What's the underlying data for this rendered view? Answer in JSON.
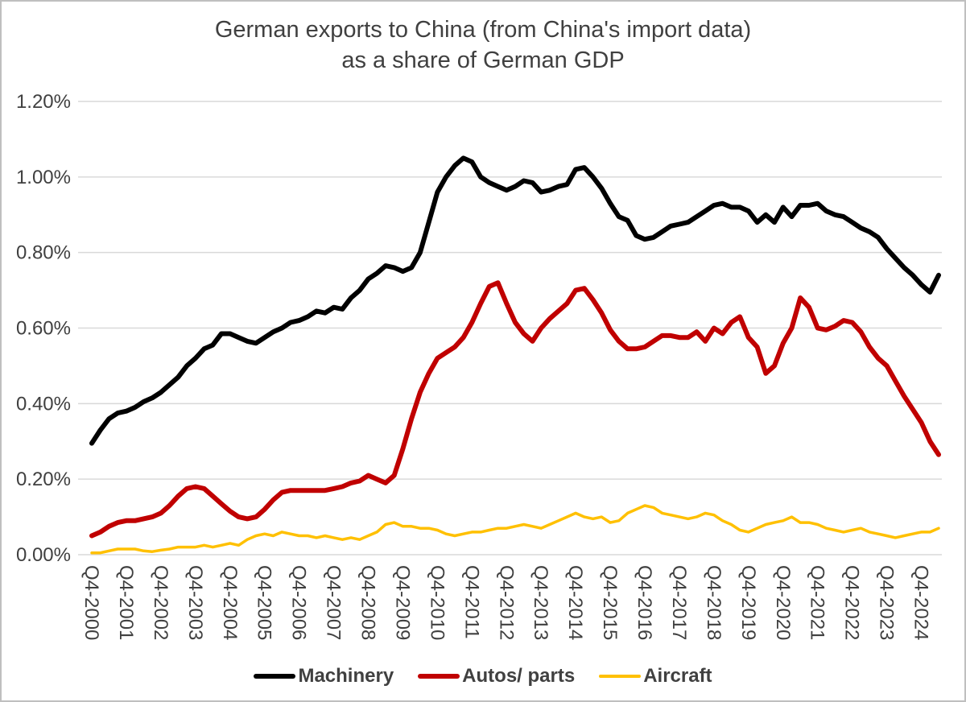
{
  "chart_data": {
    "type": "line",
    "title": "German exports to China (from China's import data) as a share of German GDP",
    "title_lines": [
      "German exports to China (from China's import data)",
      "as a share of German GDP"
    ],
    "x_unit": "quarter",
    "x_start": "Q4-2000",
    "x_tick_every": 4,
    "x_tick_labels": [
      "Q4-2000",
      "Q4-2001",
      "Q4-2002",
      "Q4-2003",
      "Q4-2004",
      "Q4-2005",
      "Q4-2006",
      "Q4-2007",
      "Q4-2008",
      "Q4-2009",
      "Q4-2010",
      "Q4-2011",
      "Q4-2012",
      "Q4-2013",
      "Q4-2014",
      "Q4-2015",
      "Q4-2016",
      "Q4-2017",
      "Q4-2018",
      "Q4-2019",
      "Q4-2020",
      "Q4-2021",
      "Q4-2022",
      "Q4-2023",
      "Q4-2024"
    ],
    "ylim": [
      0,
      1.2
    ],
    "ytick_step": 0.2,
    "ytick_labels": [
      "0.00%",
      "0.20%",
      "0.40%",
      "0.60%",
      "0.80%",
      "1.00%",
      "1.20%"
    ],
    "y_unit": "percent of German GDP",
    "grid": "horizontal",
    "legend_position": "bottom",
    "series": [
      {
        "name": "Machinery",
        "color": "#000000",
        "values": [
          0.295,
          0.33,
          0.36,
          0.375,
          0.38,
          0.39,
          0.405,
          0.415,
          0.43,
          0.45,
          0.47,
          0.5,
          0.52,
          0.545,
          0.555,
          0.585,
          0.585,
          0.575,
          0.565,
          0.56,
          0.575,
          0.59,
          0.6,
          0.615,
          0.62,
          0.63,
          0.645,
          0.64,
          0.655,
          0.65,
          0.68,
          0.7,
          0.73,
          0.745,
          0.765,
          0.76,
          0.75,
          0.76,
          0.8,
          0.88,
          0.96,
          1.0,
          1.03,
          1.05,
          1.04,
          1.0,
          0.985,
          0.975,
          0.965,
          0.975,
          0.99,
          0.985,
          0.96,
          0.965,
          0.975,
          0.98,
          1.02,
          1.025,
          1.0,
          0.97,
          0.93,
          0.895,
          0.885,
          0.845,
          0.835,
          0.84,
          0.855,
          0.87,
          0.875,
          0.88,
          0.895,
          0.91,
          0.925,
          0.93,
          0.92,
          0.92,
          0.91,
          0.88,
          0.9,
          0.88,
          0.92,
          0.895,
          0.925,
          0.925,
          0.93,
          0.91,
          0.9,
          0.895,
          0.88,
          0.865,
          0.855,
          0.84,
          0.81,
          0.785,
          0.76,
          0.74,
          0.715,
          0.695,
          0.74
        ]
      },
      {
        "name": "Autos/ parts",
        "color": "#C00000",
        "values": [
          0.05,
          0.06,
          0.075,
          0.085,
          0.09,
          0.09,
          0.095,
          0.1,
          0.11,
          0.13,
          0.155,
          0.175,
          0.18,
          0.175,
          0.155,
          0.135,
          0.115,
          0.1,
          0.095,
          0.1,
          0.12,
          0.145,
          0.165,
          0.17,
          0.17,
          0.17,
          0.17,
          0.17,
          0.175,
          0.18,
          0.19,
          0.195,
          0.21,
          0.2,
          0.19,
          0.21,
          0.28,
          0.36,
          0.43,
          0.48,
          0.52,
          0.535,
          0.55,
          0.575,
          0.615,
          0.665,
          0.71,
          0.72,
          0.665,
          0.615,
          0.585,
          0.565,
          0.6,
          0.625,
          0.645,
          0.665,
          0.7,
          0.705,
          0.675,
          0.64,
          0.595,
          0.565,
          0.545,
          0.545,
          0.55,
          0.565,
          0.58,
          0.58,
          0.575,
          0.575,
          0.59,
          0.565,
          0.6,
          0.585,
          0.615,
          0.63,
          0.575,
          0.55,
          0.48,
          0.5,
          0.56,
          0.6,
          0.68,
          0.655,
          0.6,
          0.595,
          0.605,
          0.62,
          0.615,
          0.59,
          0.55,
          0.52,
          0.5,
          0.46,
          0.42,
          0.385,
          0.35,
          0.3,
          0.265
        ]
      },
      {
        "name": "Aircraft",
        "color": "#FFC000",
        "values": [
          0.005,
          0.005,
          0.01,
          0.015,
          0.015,
          0.015,
          0.01,
          0.008,
          0.012,
          0.015,
          0.02,
          0.02,
          0.02,
          0.025,
          0.02,
          0.025,
          0.03,
          0.025,
          0.04,
          0.05,
          0.055,
          0.05,
          0.06,
          0.055,
          0.05,
          0.05,
          0.045,
          0.05,
          0.045,
          0.04,
          0.045,
          0.04,
          0.05,
          0.06,
          0.08,
          0.085,
          0.075,
          0.075,
          0.07,
          0.07,
          0.065,
          0.055,
          0.05,
          0.055,
          0.06,
          0.06,
          0.065,
          0.07,
          0.07,
          0.075,
          0.08,
          0.075,
          0.07,
          0.08,
          0.09,
          0.1,
          0.11,
          0.1,
          0.095,
          0.1,
          0.085,
          0.09,
          0.11,
          0.12,
          0.13,
          0.125,
          0.11,
          0.105,
          0.1,
          0.095,
          0.1,
          0.11,
          0.105,
          0.09,
          0.08,
          0.065,
          0.06,
          0.07,
          0.08,
          0.085,
          0.09,
          0.1,
          0.085,
          0.085,
          0.08,
          0.07,
          0.065,
          0.06,
          0.065,
          0.07,
          0.06,
          0.055,
          0.05,
          0.045,
          0.05,
          0.055,
          0.06,
          0.06,
          0.07
        ]
      }
    ]
  },
  "style": {
    "grid_color": "#d9d9d9",
    "text_color": "#404040",
    "border_color": "#bfbfbf",
    "background_color": "#ffffff"
  }
}
